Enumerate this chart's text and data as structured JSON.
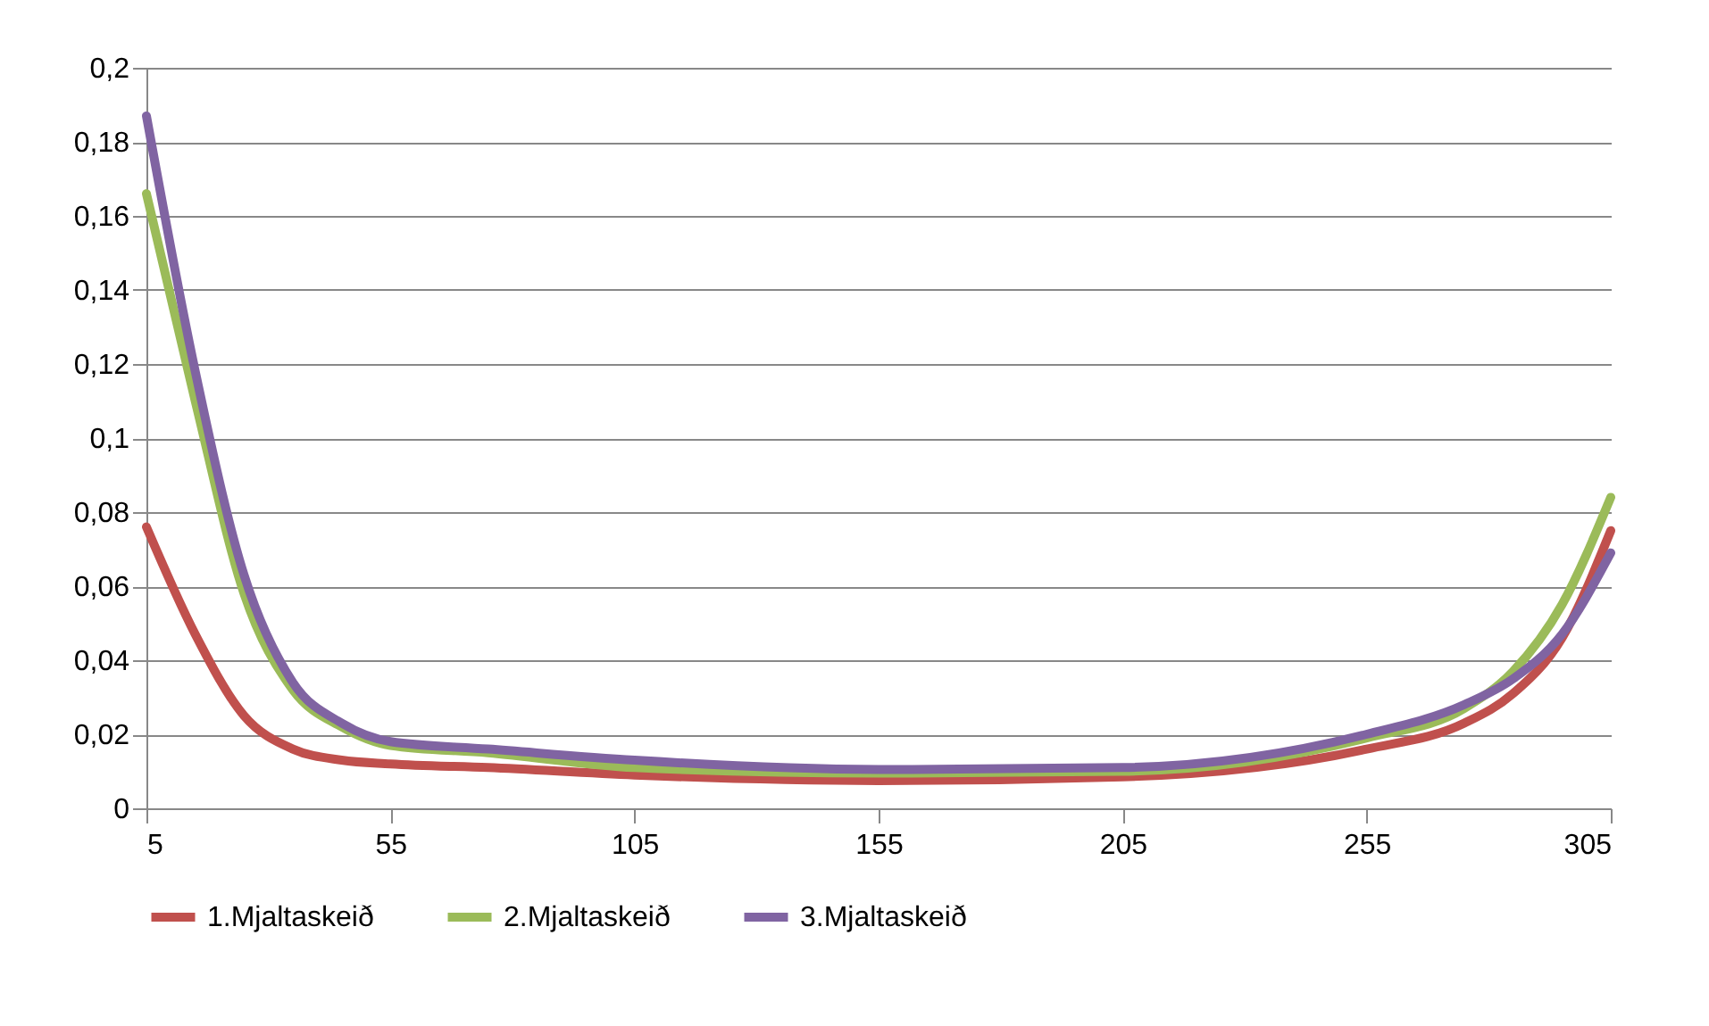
{
  "chart_data": {
    "type": "line",
    "x": [
      5,
      15,
      25,
      35,
      45,
      55,
      75,
      105,
      155,
      205,
      255,
      275,
      285,
      295,
      305
    ],
    "series": [
      {
        "name": "1.Mjaltaskeið",
        "color": "#c0504d",
        "values": [
          0.076,
          0.047,
          0.025,
          0.016,
          0.013,
          0.012,
          0.011,
          0.009,
          0.0075,
          0.0085,
          0.016,
          0.023,
          0.031,
          0.046,
          0.075
        ]
      },
      {
        "name": "2.Mjaltaskeið",
        "color": "#9bbb59",
        "values": [
          0.166,
          0.11,
          0.058,
          0.032,
          0.022,
          0.017,
          0.015,
          0.011,
          0.0095,
          0.01,
          0.019,
          0.027,
          0.037,
          0.055,
          0.084
        ]
      },
      {
        "name": "3.Mjaltaskeið",
        "color": "#8064a2",
        "values": [
          0.187,
          0.118,
          0.063,
          0.034,
          0.023,
          0.018,
          0.016,
          0.013,
          0.0105,
          0.011,
          0.02,
          0.028,
          0.035,
          0.047,
          0.069
        ]
      }
    ],
    "xlim": [
      5,
      305
    ],
    "xticks": [
      5,
      55,
      105,
      155,
      205,
      255,
      305
    ],
    "ylim": [
      0,
      0.2
    ],
    "yticks": [
      {
        "value": 0,
        "label": "0"
      },
      {
        "value": 0.02,
        "label": "0,02"
      },
      {
        "value": 0.04,
        "label": "0,04"
      },
      {
        "value": 0.06,
        "label": "0,06"
      },
      {
        "value": 0.08,
        "label": "0,08"
      },
      {
        "value": 0.1,
        "label": "0,1"
      },
      {
        "value": 0.12,
        "label": "0,12"
      },
      {
        "value": 0.14,
        "label": "0,14"
      },
      {
        "value": 0.16,
        "label": "0,16"
      },
      {
        "value": 0.18,
        "label": "0,18"
      },
      {
        "value": 0.2,
        "label": "0,2"
      }
    ],
    "grid": "y",
    "legend": "bottom",
    "marker": "none",
    "line_style": "solid"
  }
}
